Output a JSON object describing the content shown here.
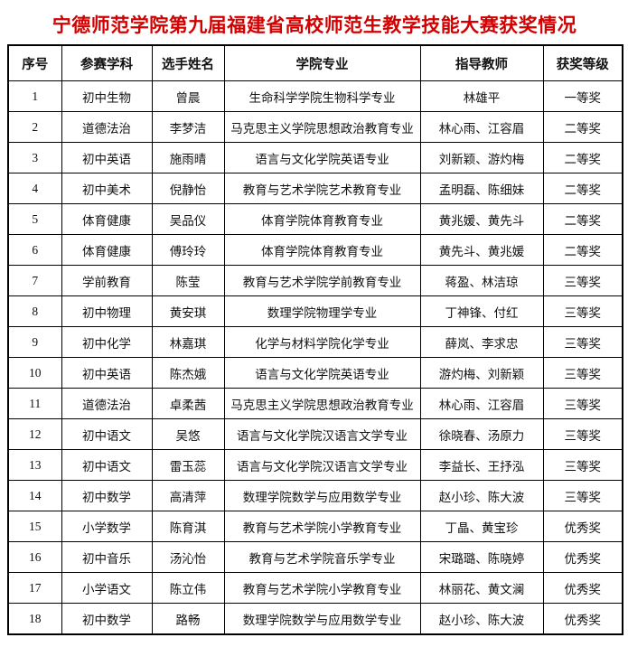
{
  "page": {
    "title": "宁德师范学院第九届福建省高校师范生教学技能大赛获奖情况",
    "title_color": "#d40000",
    "border_color": "#000000"
  },
  "table": {
    "headers": [
      "序号",
      "参赛学科",
      "选手姓名",
      "学院专业",
      "指导教师",
      "获奖等级"
    ],
    "rows": [
      [
        "1",
        "初中生物",
        "曾晨",
        "生命科学学院生物科学专业",
        "林雄平",
        "一等奖"
      ],
      [
        "2",
        "道德法治",
        "李梦洁",
        "马克思主义学院思想政治教育专业",
        "林心雨、江容眉",
        "二等奖"
      ],
      [
        "3",
        "初中英语",
        "施雨晴",
        "语言与文化学院英语专业",
        "刘新颖、游灼梅",
        "二等奖"
      ],
      [
        "4",
        "初中美术",
        "倪静怡",
        "教育与艺术学院艺术教育专业",
        "孟明磊、陈细妹",
        "二等奖"
      ],
      [
        "5",
        "体育健康",
        "吴品仪",
        "体育学院体育教育专业",
        "黄兆媛、黄先斗",
        "二等奖"
      ],
      [
        "6",
        "体育健康",
        "傅玲玲",
        "体育学院体育教育专业",
        "黄先斗、黄兆媛",
        "二等奖"
      ],
      [
        "7",
        "学前教育",
        "陈莹",
        "教育与艺术学院学前教育专业",
        "蒋盈、林洁琼",
        "三等奖"
      ],
      [
        "8",
        "初中物理",
        "黄安琪",
        "数理学院物理学专业",
        "丁神锋、付红",
        "三等奖"
      ],
      [
        "9",
        "初中化学",
        "林嘉琪",
        "化学与材料学院化学专业",
        "薛岚、李求忠",
        "三等奖"
      ],
      [
        "10",
        "初中英语",
        "陈杰娥",
        "语言与文化学院英语专业",
        "游灼梅、刘新颖",
        "三等奖"
      ],
      [
        "11",
        "道德法治",
        "卓柔茜",
        "马克思主义学院思想政治教育专业",
        "林心雨、江容眉",
        "三等奖"
      ],
      [
        "12",
        "初中语文",
        "吴悠",
        "语言与文化学院汉语言文学专业",
        "徐晓春、汤原力",
        "三等奖"
      ],
      [
        "13",
        "初中语文",
        "雷玉蕊",
        "语言与文化学院汉语言文学专业",
        "李益长、王抒泓",
        "三等奖"
      ],
      [
        "14",
        "初中数学",
        "高清萍",
        "数理学院数学与应用数学专业",
        "赵小珍、陈大波",
        "三等奖"
      ],
      [
        "15",
        "小学数学",
        "陈育淇",
        "教育与艺术学院小学教育专业",
        "丁晶、黄宝珍",
        "优秀奖"
      ],
      [
        "16",
        "初中音乐",
        "汤沁怡",
        "教育与艺术学院音乐学专业",
        "宋璐璐、陈晓婷",
        "优秀奖"
      ],
      [
        "17",
        "小学语文",
        "陈立伟",
        "教育与艺术学院小学教育专业",
        "林丽花、黄文澜",
        "优秀奖"
      ],
      [
        "18",
        "初中数学",
        "路畅",
        "数理学院数学与应用数学专业",
        "赵小珍、陈大波",
        "优秀奖"
      ]
    ]
  }
}
